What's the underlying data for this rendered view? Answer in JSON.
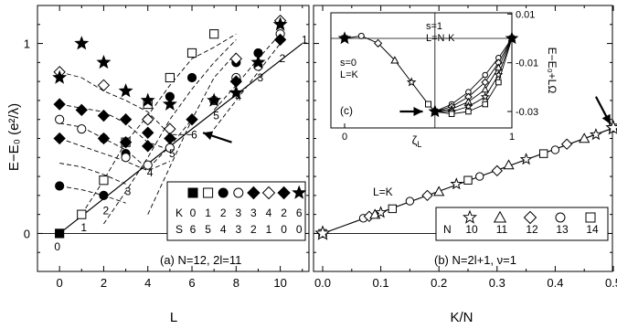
{
  "chart_data": [
    {
      "type": "scatter",
      "panel_label": "(a) N=12, 2l=11",
      "xlabel": "L",
      "ylabel": "E−E₀ (e²/λ)",
      "xlim": [
        -1,
        11.3
      ],
      "ylim": [
        -0.2,
        1.2
      ],
      "xticks": [
        0,
        2,
        4,
        6,
        8,
        10
      ],
      "yticks": [
        0,
        1
      ],
      "legend": {
        "location": "bottom-right",
        "row_K_label": "K",
        "row_S_label": "S",
        "K": [
          "0",
          "1",
          "2",
          "3",
          "3",
          "4",
          "2",
          "6"
        ],
        "S": [
          "6",
          "5",
          "4",
          "3",
          "2",
          "1",
          "0",
          "0"
        ]
      },
      "band_labels": [
        {
          "text": "0",
          "x": -0.1,
          "y": -0.07
        },
        {
          "text": "1",
          "x": 1.1,
          "y": 0.03
        },
        {
          "text": "2",
          "x": 2.1,
          "y": 0.12
        },
        {
          "text": "3",
          "x": 3.1,
          "y": 0.22
        },
        {
          "text": "4",
          "x": 4.1,
          "y": 0.32
        },
        {
          "text": "5",
          "x": 5.1,
          "y": 0.42
        },
        {
          "text": "6",
          "x": 6.1,
          "y": 0.52
        },
        {
          "text": "5",
          "x": 7.1,
          "y": 0.62
        },
        {
          "text": "4",
          "x": 8.1,
          "y": 0.72
        },
        {
          "text": "3",
          "x": 9.1,
          "y": 0.82
        },
        {
          "text": "2",
          "x": 10.1,
          "y": 0.92
        },
        {
          "text": "1",
          "x": 11.1,
          "y": 1.02
        }
      ],
      "series": [
        {
          "name": "K=0 S=6",
          "marker": "filled-square",
          "points": [
            [
              0,
              0
            ]
          ]
        },
        {
          "name": "K=1 S=5",
          "marker": "open-square",
          "points": [
            [
              1,
              0.1
            ],
            [
              2,
              0.28
            ],
            [
              3,
              0.48
            ],
            [
              4,
              0.68
            ],
            [
              5,
              0.82
            ],
            [
              6,
              0.95
            ],
            [
              7,
              1.05
            ]
          ]
        },
        {
          "name": "K=2 S=4",
          "marker": "filled-circle",
          "points": [
            [
              0,
              0.25
            ],
            [
              2,
              0.2
            ],
            [
              3,
              0.42
            ],
            [
              4,
              0.6
            ],
            [
              5,
              0.72
            ],
            [
              6,
              0.82
            ],
            [
              8,
              0.9
            ],
            [
              9,
              0.95
            ]
          ]
        },
        {
          "name": "K=3 S=3",
          "marker": "open-circle",
          "points": [
            [
              0,
              0.6
            ],
            [
              1,
              0.55
            ],
            [
              2,
              0.5
            ],
            [
              3,
              0.4
            ],
            [
              4,
              0.36
            ],
            [
              5,
              0.45
            ],
            [
              7,
              0.7
            ],
            [
              8,
              0.82
            ],
            [
              9,
              0.88
            ],
            [
              10,
              1.05
            ]
          ]
        },
        {
          "name": "K=3 S=2",
          "marker": "filled-diamond",
          "points": [
            [
              0,
              0.5
            ],
            [
              2,
              0.5
            ],
            [
              3,
              0.48
            ],
            [
              4,
              0.46
            ],
            [
              6,
              0.6
            ],
            [
              8,
              0.8
            ],
            [
              10,
              1.02
            ]
          ]
        },
        {
          "name": "K=4 S=1",
          "marker": "open-diamond",
          "points": [
            [
              0,
              0.85
            ],
            [
              2,
              0.78
            ],
            [
              4,
              0.6
            ],
            [
              5,
              0.55
            ],
            [
              8,
              0.92
            ],
            [
              10,
              1.12
            ]
          ]
        },
        {
          "name": "K=2 S=0",
          "marker": "filled-diamond",
          "points": [
            [
              0,
              0.68
            ],
            [
              1,
              0.65
            ],
            [
              2,
              0.62
            ],
            [
              3,
              0.6
            ],
            [
              4,
              0.53
            ],
            [
              5,
              0.5
            ]
          ]
        },
        {
          "name": "K=6 S=0",
          "marker": "filled-star",
          "points": [
            [
              0,
              0.82
            ],
            [
              1,
              1.0
            ],
            [
              2,
              0.9
            ],
            [
              3,
              0.75
            ],
            [
              4,
              0.7
            ],
            [
              5,
              0.68
            ],
            [
              7,
              0.7
            ],
            [
              8,
              0.74
            ],
            [
              9,
              0.9
            ],
            [
              10,
              1.1
            ]
          ]
        }
      ],
      "dashed_lines": [
        [
          [
            0,
            0.85
          ],
          [
            1,
            0.82
          ],
          [
            2,
            0.75
          ],
          [
            3,
            0.7
          ],
          [
            4,
            0.64
          ],
          [
            5,
            0.52
          ],
          [
            6,
            0.52
          ]
        ],
        [
          [
            0,
            0.68
          ],
          [
            1,
            0.66
          ],
          [
            2,
            0.64
          ],
          [
            3,
            0.58
          ],
          [
            4,
            0.48
          ],
          [
            5,
            0.44
          ]
        ],
        [
          [
            0,
            0.58
          ],
          [
            1,
            0.56
          ],
          [
            2,
            0.5
          ],
          [
            3,
            0.44
          ],
          [
            4,
            0.34
          ],
          [
            5,
            0.46
          ],
          [
            6,
            0.6
          ]
        ],
        [
          [
            0,
            0.5
          ],
          [
            1,
            0.46
          ],
          [
            2,
            0.42
          ],
          [
            3,
            0.38
          ],
          [
            4,
            0.33
          ],
          [
            5,
            0.38
          ]
        ],
        [
          [
            0,
            0.25
          ],
          [
            1,
            0.23
          ],
          [
            2,
            0.2
          ],
          [
            3,
            0.16
          ]
        ],
        [
          [
            0,
            0.37
          ],
          [
            1,
            0.35
          ],
          [
            2,
            0.31
          ],
          [
            3,
            0.26
          ]
        ],
        [
          [
            1,
            0.1
          ],
          [
            2,
            0.28
          ],
          [
            3,
            0.48
          ],
          [
            4,
            0.62
          ],
          [
            5,
            0.78
          ],
          [
            6,
            0.92
          ],
          [
            7,
            0.98
          ],
          [
            8,
            1.05
          ]
        ],
        [
          [
            2,
            0.05
          ],
          [
            3,
            0.22
          ],
          [
            4,
            0.4
          ],
          [
            5,
            0.6
          ],
          [
            6,
            0.76
          ],
          [
            7,
            0.9
          ],
          [
            8,
            1.02
          ]
        ],
        [
          [
            4,
            0.1
          ],
          [
            5,
            0.35
          ],
          [
            6,
            0.6
          ],
          [
            7,
            0.82
          ],
          [
            8,
            0.95
          ]
        ],
        [
          [
            7,
            0.65
          ],
          [
            8,
            0.78
          ],
          [
            9,
            0.92
          ],
          [
            10,
            1.05
          ]
        ],
        [
          [
            7,
            0.55
          ],
          [
            8,
            0.7
          ],
          [
            9,
            0.85
          ],
          [
            10,
            1.0
          ]
        ]
      ],
      "solid_line": [
        [
          0,
          0
        ],
        [
          6,
          0.55
        ],
        [
          11,
          1.0
        ]
      ],
      "arrow": {
        "from": [
          7.8,
          0.48
        ],
        "to": [
          6.5,
          0.53
        ]
      }
    },
    {
      "type": "scatter",
      "panel_label": "(b) N=2l+1, ν=1",
      "xlabel": "K/N",
      "xlim": [
        0.0,
        0.5
      ],
      "ylim": [
        -0.2,
        1.2
      ],
      "xticks": [
        0.0,
        0.1,
        0.2,
        0.3,
        0.4,
        0.5
      ],
      "xticklabels": [
        "0.0",
        "0.1",
        "0.2",
        "0.3",
        "0.4",
        "0.5"
      ],
      "line_label": "L=K",
      "legend": {
        "location": "bottom-right",
        "row_label": "N",
        "entries": [
          {
            "marker": "open-star",
            "label": "10"
          },
          {
            "marker": "open-triangle",
            "label": "11"
          },
          {
            "marker": "open-diamond",
            "label": "12"
          },
          {
            "marker": "open-circle",
            "label": "13"
          },
          {
            "marker": "open-square",
            "label": "14"
          }
        ]
      },
      "line": [
        [
          0.0,
          0.0
        ],
        [
          0.5,
          0.555
        ]
      ],
      "points": [
        [
          0.0,
          0.0
        ],
        [
          0.07,
          0.08
        ],
        [
          0.08,
          0.09
        ],
        [
          0.09,
          0.1
        ],
        [
          0.1,
          0.11
        ],
        [
          0.12,
          0.13
        ],
        [
          0.15,
          0.17
        ],
        [
          0.18,
          0.2
        ],
        [
          0.2,
          0.22
        ],
        [
          0.23,
          0.26
        ],
        [
          0.25,
          0.28
        ],
        [
          0.27,
          0.3
        ],
        [
          0.3,
          0.33
        ],
        [
          0.32,
          0.36
        ],
        [
          0.35,
          0.39
        ],
        [
          0.38,
          0.42
        ],
        [
          0.4,
          0.44
        ],
        [
          0.42,
          0.47
        ],
        [
          0.45,
          0.5
        ],
        [
          0.47,
          0.52
        ],
        [
          0.5,
          0.555
        ]
      ],
      "arrow": {
        "from": [
          0.47,
          0.72
        ],
        "to": [
          0.495,
          0.575
        ]
      },
      "inset": {
        "label": "(c)",
        "xlabel": "ζL",
        "ylabel": "E−E₀+LΩ",
        "yticks": [
          0.01,
          -0.01,
          -0.03
        ],
        "yticklabels": [
          "0.01",
          "-0.01",
          "-0.03"
        ],
        "xticks": [
          0,
          1
        ],
        "xticklabels": [
          "0",
          "1"
        ],
        "region_left": {
          "line1": "s=0",
          "line2": "L=K"
        },
        "region_right": {
          "line1": "s=1",
          "line2": "L=N-K"
        },
        "curve_left": [
          [
            0.0,
            0.0
          ],
          [
            0.1,
            0.001
          ],
          [
            0.2,
            -0.002
          ],
          [
            0.3,
            -0.009
          ],
          [
            0.4,
            -0.018
          ],
          [
            0.5,
            -0.027
          ],
          [
            0.54,
            -0.03
          ]
        ],
        "curves_right": [
          [
            [
              0.54,
              -0.03
            ],
            [
              0.64,
              -0.027
            ],
            [
              0.74,
              -0.022
            ],
            [
              0.84,
              -0.015
            ],
            [
              0.92,
              -0.008
            ],
            [
              1.0,
              0.0
            ]
          ],
          [
            [
              0.54,
              -0.03
            ],
            [
              0.64,
              -0.028
            ],
            [
              0.74,
              -0.024
            ],
            [
              0.84,
              -0.018
            ],
            [
              0.92,
              -0.01
            ],
            [
              1.0,
              0.0
            ]
          ],
          [
            [
              0.54,
              -0.03
            ],
            [
              0.64,
              -0.029
            ],
            [
              0.74,
              -0.026
            ],
            [
              0.84,
              -0.021
            ],
            [
              0.92,
              -0.012
            ],
            [
              1.0,
              0.0
            ]
          ],
          [
            [
              0.54,
              -0.03
            ],
            [
              0.64,
              -0.03
            ],
            [
              0.74,
              -0.028
            ],
            [
              0.84,
              -0.024
            ],
            [
              0.92,
              -0.015
            ],
            [
              1.0,
              0.0
            ]
          ],
          [
            [
              0.54,
              -0.03
            ],
            [
              0.64,
              -0.031
            ],
            [
              0.74,
              -0.03
            ],
            [
              0.84,
              -0.027
            ],
            [
              0.92,
              -0.018
            ],
            [
              1.0,
              0.0
            ]
          ]
        ],
        "arrow": {
          "from": [
            0.33,
            -0.03
          ],
          "to": [
            0.5,
            -0.03
          ]
        }
      }
    }
  ]
}
